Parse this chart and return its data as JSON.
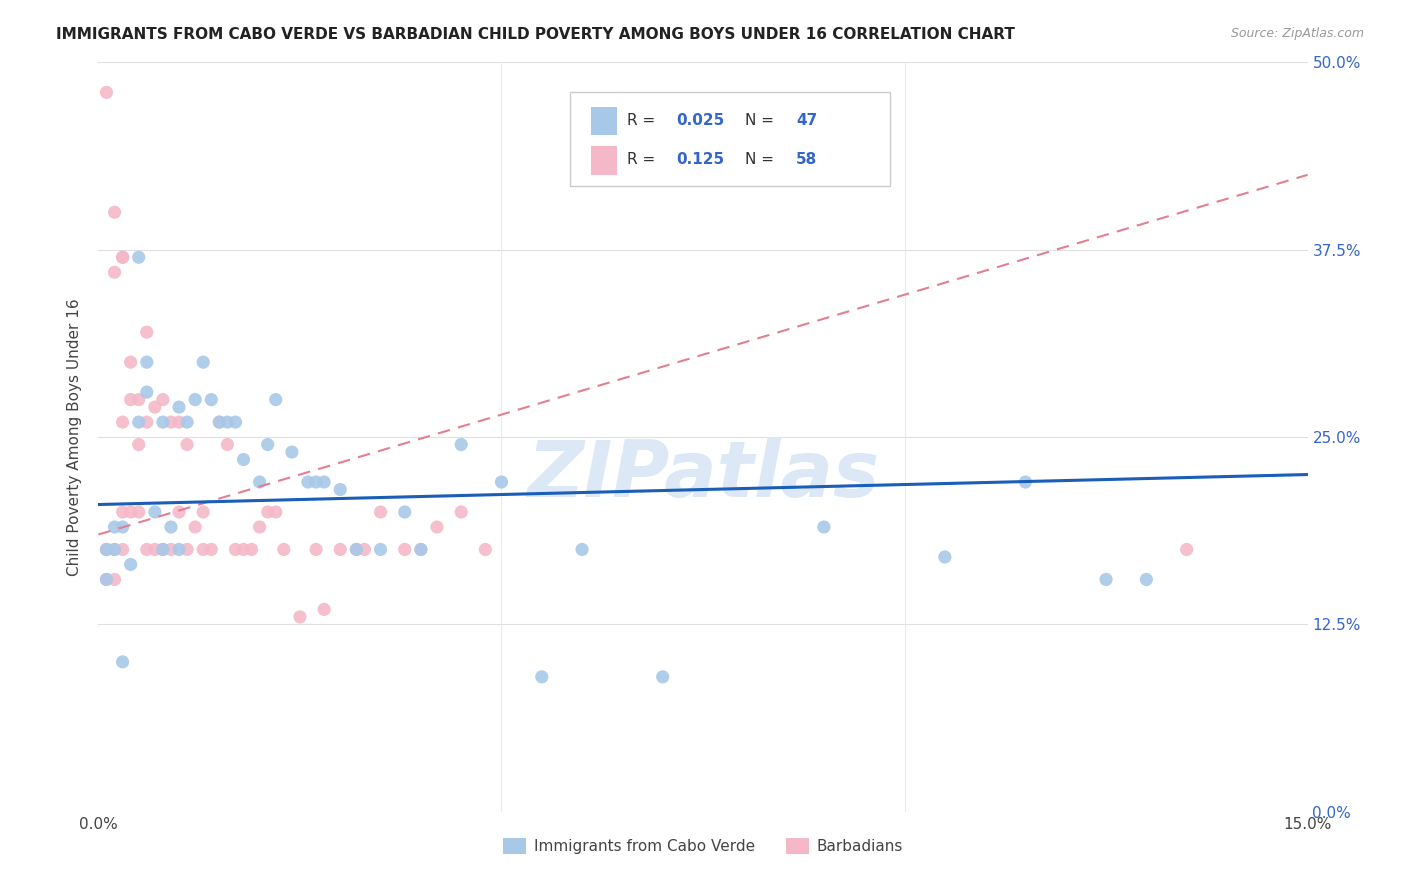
{
  "title": "IMMIGRANTS FROM CABO VERDE VS BARBADIAN CHILD POVERTY AMONG BOYS UNDER 16 CORRELATION CHART",
  "source": "Source: ZipAtlas.com",
  "ylabel": "Child Poverty Among Boys Under 16",
  "x_min": 0.0,
  "x_max": 0.15,
  "y_min": 0.0,
  "y_max": 0.5,
  "x_ticks": [
    0.0,
    0.05,
    0.1,
    0.15
  ],
  "x_tick_labels": [
    "0.0%",
    "",
    "",
    "15.0%"
  ],
  "y_ticks": [
    0.0,
    0.125,
    0.25,
    0.375,
    0.5
  ],
  "y_tick_labels_right": [
    "0.0%",
    "12.5%",
    "25.0%",
    "37.5%",
    "50.0%"
  ],
  "legend_label1": "Immigrants from Cabo Verde",
  "legend_label2": "Barbadians",
  "R1": 0.025,
  "N1": 47,
  "R2": 0.125,
  "N2": 58,
  "color_blue": "#a8c8e8",
  "color_pink": "#f4b8c8",
  "trendline_blue": "#1a5eb8",
  "trendline_pink": "#e08090",
  "watermark_color": "#dce8f5",
  "cabo_verde_x": [
    0.001,
    0.001,
    0.002,
    0.002,
    0.003,
    0.003,
    0.004,
    0.005,
    0.005,
    0.006,
    0.006,
    0.007,
    0.008,
    0.008,
    0.009,
    0.01,
    0.01,
    0.011,
    0.012,
    0.013,
    0.014,
    0.015,
    0.016,
    0.017,
    0.018,
    0.02,
    0.021,
    0.022,
    0.024,
    0.026,
    0.027,
    0.028,
    0.03,
    0.032,
    0.035,
    0.038,
    0.04,
    0.045,
    0.05,
    0.055,
    0.06,
    0.07,
    0.09,
    0.105,
    0.115,
    0.125,
    0.13
  ],
  "cabo_verde_y": [
    0.175,
    0.155,
    0.19,
    0.175,
    0.19,
    0.1,
    0.165,
    0.37,
    0.26,
    0.3,
    0.28,
    0.2,
    0.26,
    0.175,
    0.19,
    0.27,
    0.175,
    0.26,
    0.275,
    0.3,
    0.275,
    0.26,
    0.26,
    0.26,
    0.235,
    0.22,
    0.245,
    0.275,
    0.24,
    0.22,
    0.22,
    0.22,
    0.215,
    0.175,
    0.175,
    0.2,
    0.175,
    0.245,
    0.22,
    0.09,
    0.175,
    0.09,
    0.19,
    0.17,
    0.22,
    0.155,
    0.155
  ],
  "barbadians_x": [
    0.001,
    0.001,
    0.001,
    0.001,
    0.002,
    0.002,
    0.002,
    0.002,
    0.003,
    0.003,
    0.003,
    0.003,
    0.003,
    0.004,
    0.004,
    0.004,
    0.005,
    0.005,
    0.005,
    0.006,
    0.006,
    0.006,
    0.007,
    0.007,
    0.008,
    0.008,
    0.009,
    0.009,
    0.01,
    0.01,
    0.011,
    0.011,
    0.012,
    0.013,
    0.013,
    0.014,
    0.015,
    0.016,
    0.017,
    0.018,
    0.019,
    0.02,
    0.021,
    0.022,
    0.023,
    0.025,
    0.027,
    0.028,
    0.03,
    0.032,
    0.033,
    0.035,
    0.038,
    0.04,
    0.042,
    0.045,
    0.048,
    0.135
  ],
  "barbadians_y": [
    0.48,
    0.175,
    0.175,
    0.155,
    0.4,
    0.36,
    0.175,
    0.155,
    0.37,
    0.37,
    0.26,
    0.2,
    0.175,
    0.3,
    0.275,
    0.2,
    0.275,
    0.245,
    0.2,
    0.32,
    0.26,
    0.175,
    0.27,
    0.175,
    0.275,
    0.175,
    0.26,
    0.175,
    0.26,
    0.2,
    0.245,
    0.175,
    0.19,
    0.2,
    0.175,
    0.175,
    0.26,
    0.245,
    0.175,
    0.175,
    0.175,
    0.19,
    0.2,
    0.2,
    0.175,
    0.13,
    0.175,
    0.135,
    0.175,
    0.175,
    0.175,
    0.2,
    0.175,
    0.175,
    0.19,
    0.2,
    0.175,
    0.175
  ]
}
